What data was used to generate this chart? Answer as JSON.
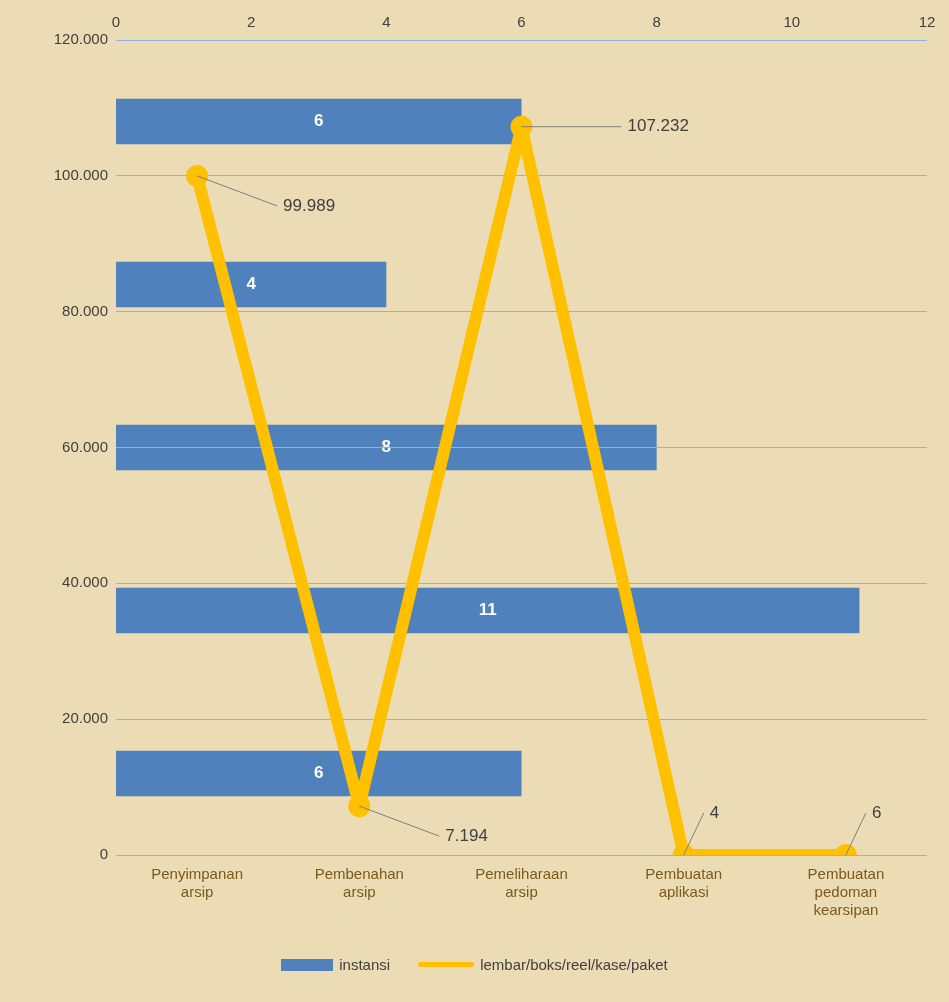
{
  "chart_data": [
    {
      "type": "bar",
      "orientation": "horizontal",
      "categories": [
        null,
        null,
        null,
        null,
        null
      ],
      "series": [
        {
          "name": "instansi",
          "color": "#4f81bd",
          "values": [
            6,
            4,
            8,
            11,
            6
          ]
        }
      ],
      "data_labels": true,
      "x2lim": [
        0,
        12
      ],
      "x2ticks": [
        0,
        2,
        4,
        6,
        8,
        10,
        12
      ],
      "legend": "bottom"
    },
    {
      "type": "line",
      "categories": [
        "Penyimpanan arsip",
        "Pembenahan arsip",
        "Pemeliharaan arsip",
        "Pembuatan aplikasi",
        "Pembuatan pedoman kearsipan"
      ],
      "series": [
        {
          "name": "lembar/boks/reel/kase/paket",
          "color": "#ffc000",
          "values": [
            99989,
            7194,
            107232,
            4,
            6
          ],
          "value_labels": [
            "99.989",
            "7.194",
            "107.232",
            "4",
            "6"
          ]
        }
      ],
      "ylim": [
        0,
        120000
      ],
      "yticks": [
        0,
        {
          "value": 20000,
          "label": "20.000"
        },
        {
          "value": 40000,
          "label": "40.000"
        },
        {
          "value": 60000,
          "label": "60.000"
        },
        {
          "value": 80000,
          "label": "80.000"
        },
        {
          "value": 100000,
          "label": "100.000"
        },
        {
          "value": 120000,
          "label": "120.000"
        }
      ],
      "grid": "y",
      "legend": "bottom",
      "marker": "circle"
    }
  ]
}
